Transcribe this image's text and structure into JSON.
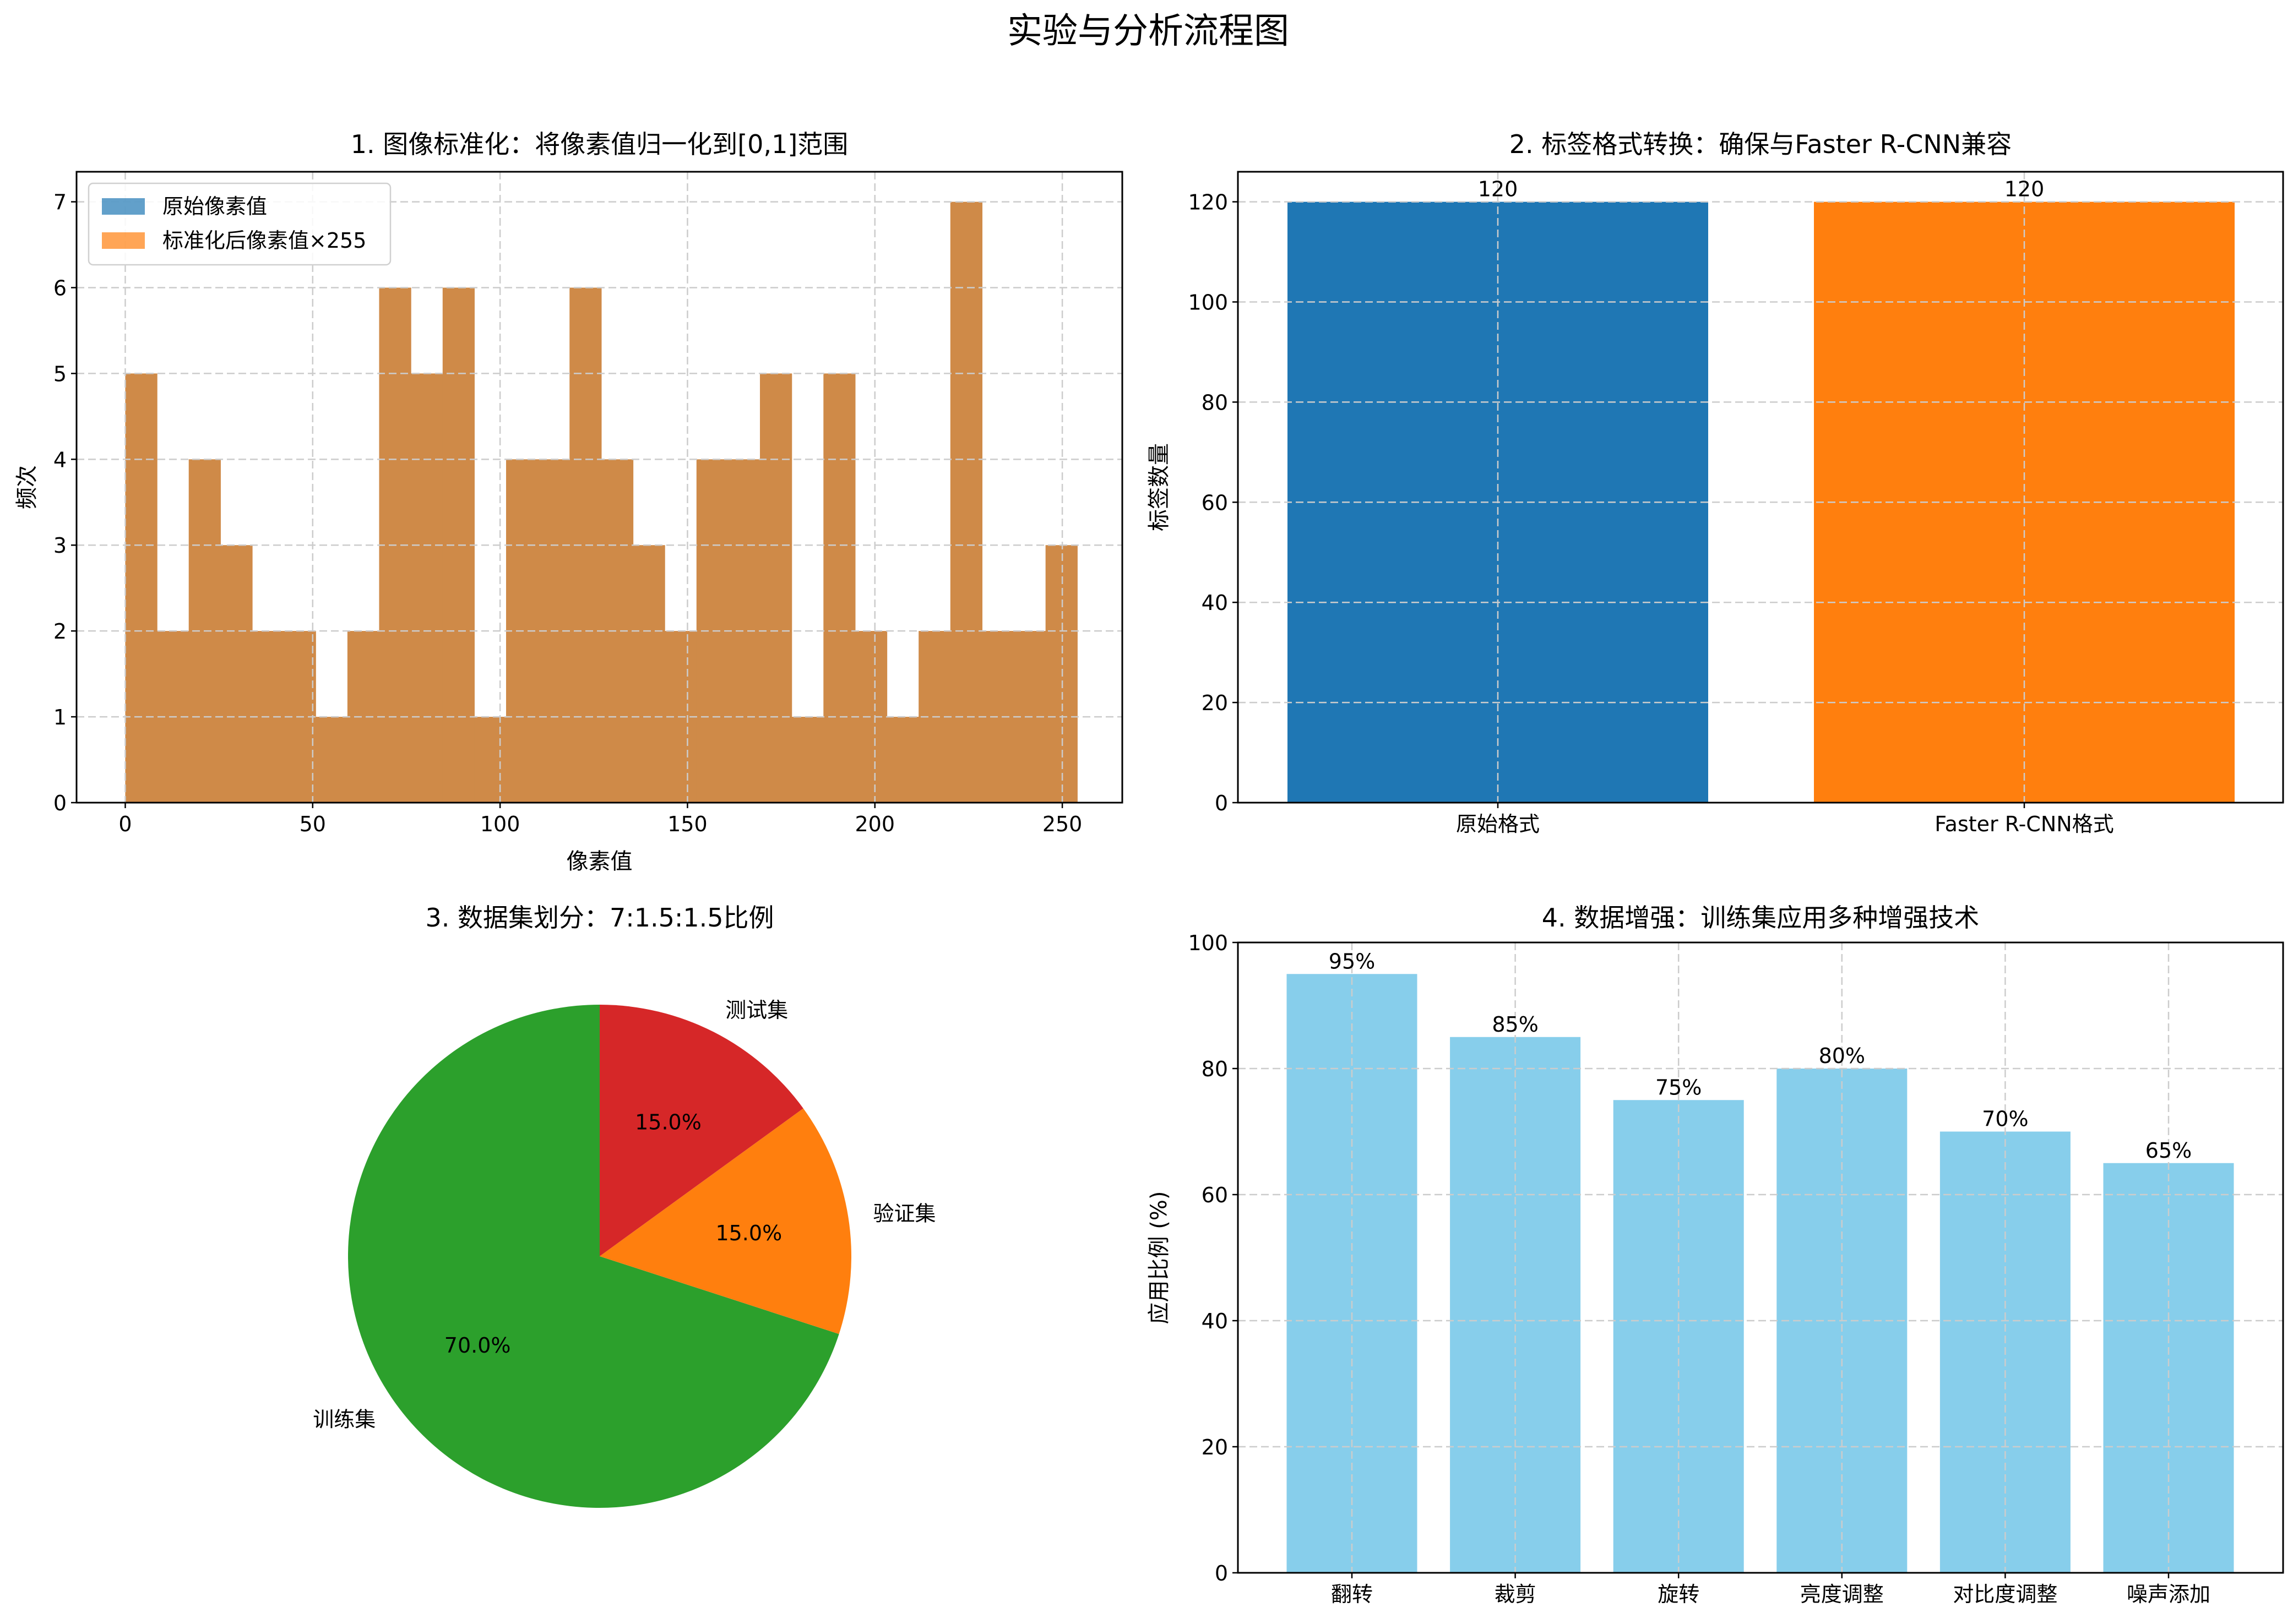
{
  "figure": {
    "suptitle": "实验与分析流程图"
  },
  "colors": {
    "tab_blue": "#1f77b4",
    "tab_orange": "#ff7f0e",
    "tab_green": "#2ca02c",
    "tab_red": "#d62728",
    "skyblue": "#87ceeb",
    "hist_overlap": "#cf8a48",
    "grid": "#cccccc"
  },
  "chart_data": [
    {
      "type": "bar",
      "subtype": "histogram",
      "title": "1. 图像标准化：将像素值归一化到[0,1]范围",
      "xlabel": "像素值",
      "ylabel": "频次",
      "xlim": [
        -13,
        266
      ],
      "ylim": [
        0,
        7.35
      ],
      "xticks": [
        0,
        50,
        100,
        150,
        200,
        250
      ],
      "yticks": [
        0,
        1,
        2,
        3,
        4,
        5,
        6,
        7
      ],
      "grid": true,
      "bin_edges": [
        0,
        8.47,
        16.93,
        25.4,
        33.87,
        42.33,
        50.8,
        59.27,
        67.73,
        76.2,
        84.67,
        93.13,
        101.6,
        110.07,
        118.53,
        127,
        135.47,
        143.93,
        152.4,
        160.87,
        169.33,
        177.8,
        186.27,
        194.73,
        203.2,
        211.67,
        220.13,
        228.6,
        237.07,
        245.53,
        254
      ],
      "counts": [
        5,
        2,
        4,
        3,
        2,
        2,
        1,
        2,
        6,
        5,
        6,
        1,
        4,
        4,
        6,
        4,
        3,
        2,
        4,
        4,
        5,
        1,
        5,
        2,
        1,
        2,
        7,
        2,
        2,
        3
      ],
      "legend": {
        "position": "upper left",
        "entries": [
          "原始像素值",
          "标准化后像素值×255"
        ]
      },
      "series": [
        {
          "name": "原始像素值",
          "color": "#1f77b4"
        },
        {
          "name": "标准化后像素值×255",
          "color": "#ff7f0e"
        }
      ]
    },
    {
      "type": "bar",
      "title": "2. 标签格式转换：确保与Faster R-CNN兼容",
      "xlabel": "",
      "ylabel": "标签数量",
      "categories": [
        "原始格式",
        "Faster R-CNN格式"
      ],
      "values": [
        120,
        120
      ],
      "value_labels": [
        "120",
        "120"
      ],
      "colors": [
        "#1f77b4",
        "#ff7f0e"
      ],
      "ylim": [
        0,
        126
      ],
      "yticks": [
        0,
        20,
        40,
        60,
        80,
        100,
        120
      ],
      "grid": true
    },
    {
      "type": "pie",
      "title": "3. 数据集划分：7:1.5:1.5比例",
      "labels": [
        "训练集",
        "验证集",
        "测试集"
      ],
      "values": [
        70,
        15,
        15
      ],
      "pct_labels": [
        "70.0%",
        "15.0%",
        "15.0%"
      ],
      "colors": [
        "#2ca02c",
        "#ff7f0e",
        "#d62728"
      ],
      "startangle": 90
    },
    {
      "type": "bar",
      "title": "4. 数据增强：训练集应用多种增强技术",
      "xlabel": "",
      "ylabel": "应用比例 (%)",
      "categories": [
        "翻转",
        "裁剪",
        "旋转",
        "亮度调整",
        "对比度调整",
        "噪声添加"
      ],
      "values": [
        95,
        85,
        75,
        80,
        70,
        65
      ],
      "value_labels": [
        "95%",
        "85%",
        "75%",
        "80%",
        "70%",
        "65%"
      ],
      "color": "#87ceeb",
      "ylim": [
        0,
        100
      ],
      "yticks": [
        0,
        20,
        40,
        60,
        80,
        100
      ],
      "grid": true
    }
  ]
}
